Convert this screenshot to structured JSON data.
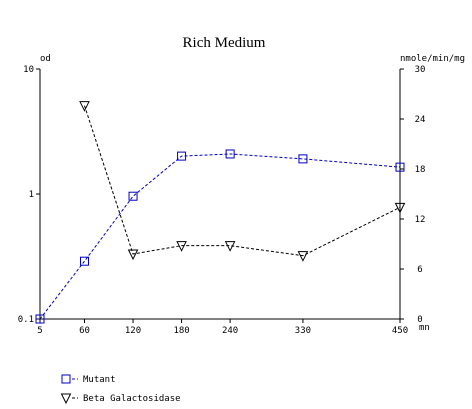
{
  "chart_data": {
    "type": "line",
    "title": "Rich Medium",
    "y_label": "od",
    "y2_label": "nmole/min/mg",
    "x_label": "mn",
    "x": [
      5,
      60,
      120,
      180,
      240,
      330,
      450
    ],
    "xlim": [
      5,
      450
    ],
    "xticks": [
      5,
      60,
      120,
      180,
      240,
      330,
      450
    ],
    "ylim": [
      0.1,
      10
    ],
    "yticks": [
      0.1,
      1,
      10
    ],
    "y_log": true,
    "y2lim": [
      0,
      30
    ],
    "y2ticks": [
      0,
      6,
      12,
      18,
      24,
      30
    ],
    "legend": "bottom-left",
    "series": [
      {
        "name": "Mutant",
        "color": "#0000c0",
        "marker": "square",
        "values": [
          0.1,
          0.29,
          0.96,
          2.01,
          2.09,
          1.91,
          1.64
        ]
      },
      {
        "name": "Beta Galactosidase",
        "color": "#000000",
        "marker": "triangle-down",
        "axis": "y2",
        "values": [
          null,
          25.6,
          7.8,
          8.8,
          8.8,
          7.6,
          13.4
        ]
      }
    ]
  }
}
